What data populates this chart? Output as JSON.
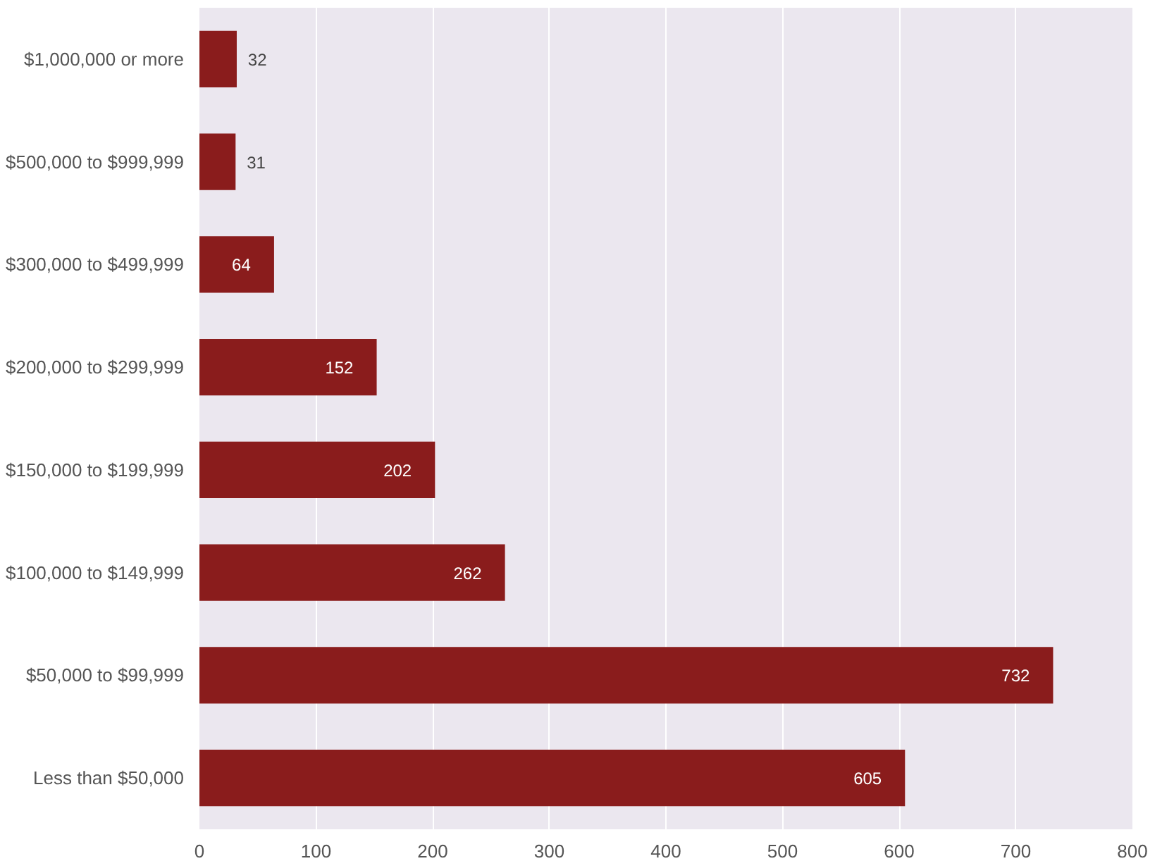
{
  "chart_data": {
    "type": "bar",
    "orientation": "horizontal",
    "data_labels": true,
    "grid": "x",
    "categories": [
      "$1,000,000 or more",
      "$500,000 to $999,999",
      "$300,000 to $499,999",
      "$200,000 to $299,999",
      "$150,000 to $199,999",
      "$100,000 to $149,999",
      "$50,000 to $99,999",
      "Less than $50,000"
    ],
    "values": [
      32,
      31,
      64,
      152,
      202,
      262,
      732,
      605
    ],
    "color": "#8a1c1c",
    "xlim": [
      0,
      800
    ],
    "xticks": [
      0,
      100,
      200,
      300,
      400,
      500,
      600,
      700,
      800
    ]
  }
}
